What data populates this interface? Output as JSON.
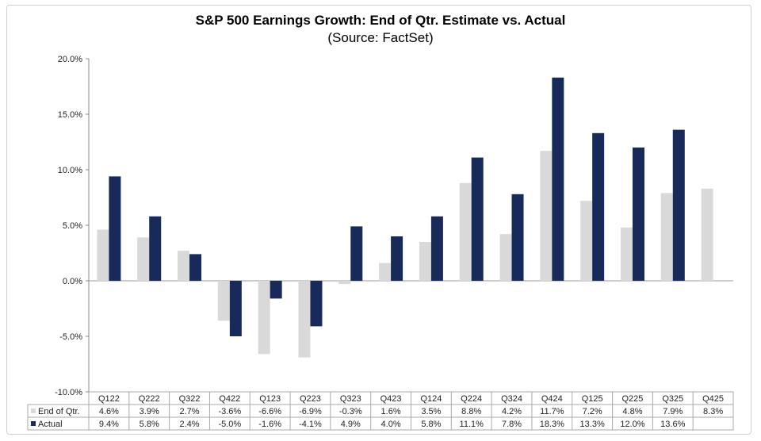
{
  "chart_data": {
    "type": "bar",
    "title": "S&P 500 Earnings Growth:  End of Qtr. Estimate vs. Actual",
    "subtitle": "(Source: FactSet)",
    "categories": [
      "Q122",
      "Q222",
      "Q322",
      "Q422",
      "Q123",
      "Q223",
      "Q323",
      "Q423",
      "Q124",
      "Q224",
      "Q324",
      "Q424",
      "Q125",
      "Q225",
      "Q325",
      "Q425"
    ],
    "series": [
      {
        "name": "End of Qtr.",
        "color": "#d9d9d9",
        "values": [
          4.6,
          3.9,
          2.7,
          -3.6,
          -6.6,
          -6.9,
          -0.3,
          1.6,
          3.5,
          8.8,
          4.2,
          11.7,
          7.2,
          4.8,
          7.9,
          8.3
        ]
      },
      {
        "name": "Actual",
        "color": "#172a5a",
        "values": [
          9.4,
          5.8,
          2.4,
          -5.0,
          -1.6,
          -4.1,
          4.9,
          4.0,
          5.8,
          11.1,
          7.8,
          18.3,
          13.3,
          12.0,
          13.6,
          null
        ]
      }
    ],
    "yticks": [
      "20.0%",
      "15.0%",
      "10.0%",
      "5.0%",
      "0.0%",
      "-5.0%",
      "-10.0%"
    ],
    "ylim": [
      -10,
      20
    ],
    "grid": false,
    "legend": "data-table"
  }
}
